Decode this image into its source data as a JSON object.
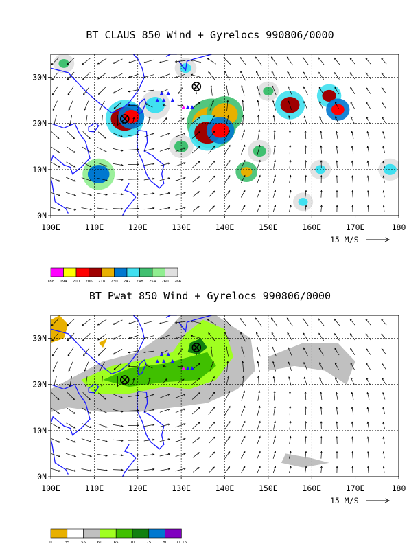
{
  "chart_data": [
    {
      "type": "heatmap",
      "title": "BT CLAUS 850 Wind + Gyrelocs 990806/0000",
      "x_ticks": [
        "100E",
        "110E",
        "120E",
        "130E",
        "140E",
        "150E",
        "160E",
        "170E",
        "180"
      ],
      "y_ticks": [
        "0N",
        "10N",
        "20N",
        "30N"
      ],
      "xlim": [
        100,
        180
      ],
      "ylim": [
        0,
        35
      ],
      "reference_vector_label": "15 M/S",
      "colorbar_labels": [
        "188",
        "194",
        "200",
        "206",
        "218",
        "230",
        "242",
        "248",
        "254",
        "260",
        "266"
      ],
      "colorbar_colors": [
        "#ff00ff",
        "#ffff00",
        "#ff0000",
        "#a00000",
        "#e8b000",
        "#0078d0",
        "#40e0f0",
        "#40c070",
        "#90ee90",
        "#e0e0e0"
      ],
      "gyre_centers": [
        {
          "lon": 117,
          "lat": 21
        },
        {
          "lon": 133.5,
          "lat": 28
        }
      ],
      "cloud_regions": [
        {
          "lon": 117,
          "lat": 21,
          "r": 3.2,
          "level": 3
        },
        {
          "lon": 118.5,
          "lat": 21.5,
          "r": 1.8,
          "level": 2
        },
        {
          "lon": 137,
          "lat": 20,
          "r": 4.5,
          "level": 4
        },
        {
          "lon": 136,
          "lat": 18,
          "r": 3,
          "level": 3
        },
        {
          "lon": 140,
          "lat": 22,
          "r": 3,
          "level": 4
        },
        {
          "lon": 139,
          "lat": 18.5,
          "r": 2,
          "level": 2
        },
        {
          "lon": 155,
          "lat": 24,
          "r": 2.2,
          "level": 3
        },
        {
          "lon": 164,
          "lat": 26,
          "r": 1.6,
          "level": 3
        },
        {
          "lon": 166,
          "lat": 23,
          "r": 1.5,
          "level": 2
        },
        {
          "lon": 111,
          "lat": 9,
          "r": 2.5,
          "level": 5
        },
        {
          "lon": 145,
          "lat": 9.5,
          "r": 1.3,
          "level": 4
        },
        {
          "lon": 162,
          "lat": 10,
          "r": 1.2,
          "level": 6
        },
        {
          "lon": 178,
          "lat": 10,
          "r": 1.5,
          "level": 6
        },
        {
          "lon": 103,
          "lat": 33,
          "r": 1.2,
          "level": 7
        },
        {
          "lon": 124,
          "lat": 24,
          "r": 2.2,
          "level": 6
        },
        {
          "lon": 131,
          "lat": 32,
          "r": 1.3,
          "level": 6
        },
        {
          "lon": 150,
          "lat": 27,
          "r": 1.2,
          "level": 7
        },
        {
          "lon": 148,
          "lat": 14,
          "r": 1.5,
          "level": 7
        },
        {
          "lon": 130,
          "lat": 15,
          "r": 1.6,
          "level": 7
        },
        {
          "lon": 158,
          "lat": 3,
          "r": 1.1,
          "level": 6
        }
      ],
      "markers": [
        {
          "lon": 125.5,
          "lat": 26.5,
          "color": "#1a1aff"
        },
        {
          "lon": 127,
          "lat": 26.5,
          "color": "#1a1aff"
        },
        {
          "lon": 124.5,
          "lat": 25,
          "color": "#1a1aff"
        },
        {
          "lon": 126,
          "lat": 25,
          "color": "#1a1aff"
        },
        {
          "lon": 128,
          "lat": 25,
          "color": "#1a1aff"
        },
        {
          "lon": 130.5,
          "lat": 23.5,
          "color": "#ff00ff"
        },
        {
          "lon": 131.5,
          "lat": 23.5,
          "color": "#1a1aff"
        },
        {
          "lon": 132.5,
          "lat": 23.5,
          "color": "#1a1aff"
        }
      ]
    },
    {
      "type": "heatmap",
      "title": "BT Pwat 850 Wind + Gyrelocs 990806/0000",
      "x_ticks": [
        "100E",
        "110E",
        "120E",
        "130E",
        "140E",
        "150E",
        "160E",
        "170E",
        "180"
      ],
      "y_ticks": [
        "0N",
        "10N",
        "20N",
        "30N"
      ],
      "xlim": [
        100,
        180
      ],
      "ylim": [
        0,
        35
      ],
      "reference_vector_label": "15 M/S",
      "colorbar_labels": [
        "0",
        "35",
        "55",
        "60",
        "65",
        "70",
        "75",
        "80",
        "71.16"
      ],
      "colorbar_colors": [
        "#e8b000",
        "#ffffff",
        "#c0c0c0",
        "#a0ff20",
        "#40c000",
        "#108010",
        "#0078d0",
        "#8000c0"
      ],
      "gyre_centers": [
        {
          "lon": 117,
          "lat": 21
        },
        {
          "lon": 133.5,
          "lat": 28
        }
      ],
      "markers": [
        {
          "lon": 125.5,
          "lat": 26.5,
          "color": "#1a1aff"
        },
        {
          "lon": 127,
          "lat": 26.5,
          "color": "#1a1aff"
        },
        {
          "lon": 124.5,
          "lat": 25,
          "color": "#1a1aff"
        },
        {
          "lon": 126,
          "lat": 25,
          "color": "#1a1aff"
        },
        {
          "lon": 128,
          "lat": 25,
          "color": "#1a1aff"
        },
        {
          "lon": 130.5,
          "lat": 23.5,
          "color": "#ff00ff"
        },
        {
          "lon": 131.5,
          "lat": 23.5,
          "color": "#1a1aff"
        },
        {
          "lon": 132.5,
          "lat": 23.5,
          "color": "#1a1aff"
        }
      ]
    }
  ]
}
